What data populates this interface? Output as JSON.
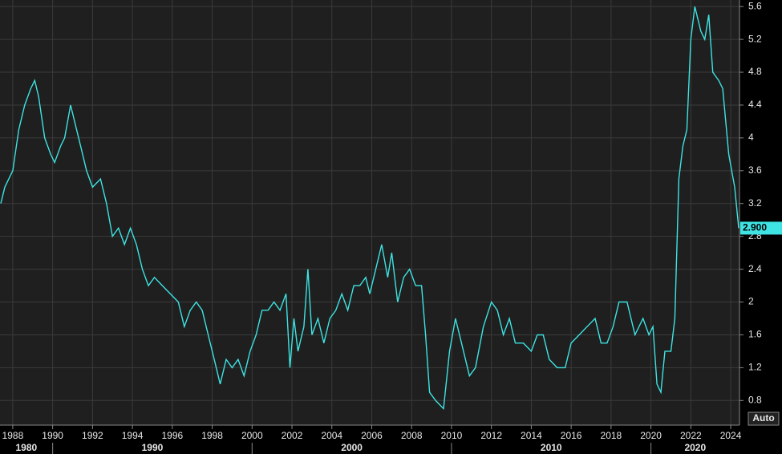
{
  "chart_data": {
    "type": "line",
    "x": [
      1987.4,
      1987.6,
      1988.0,
      1988.3,
      1988.6,
      1988.9,
      1989.1,
      1989.3,
      1989.6,
      1989.9,
      1990.1,
      1990.4,
      1990.6,
      1990.9,
      1991.1,
      1991.4,
      1991.7,
      1992.0,
      1992.4,
      1992.7,
      1993.0,
      1993.3,
      1993.6,
      1993.9,
      1994.2,
      1994.5,
      1994.8,
      1995.1,
      1995.5,
      1995.9,
      1996.3,
      1996.6,
      1996.9,
      1997.2,
      1997.5,
      1997.8,
      1998.1,
      1998.4,
      1998.7,
      1999.0,
      1999.3,
      1999.6,
      1999.9,
      2000.2,
      2000.5,
      2000.8,
      2001.1,
      2001.4,
      2001.7,
      2001.9,
      2002.1,
      2002.3,
      2002.6,
      2002.8,
      2003.0,
      2003.3,
      2003.6,
      2003.9,
      2004.2,
      2004.5,
      2004.8,
      2005.1,
      2005.4,
      2005.7,
      2005.9,
      2006.2,
      2006.5,
      2006.8,
      2007.0,
      2007.3,
      2007.6,
      2007.9,
      2008.2,
      2008.5,
      2008.7,
      2008.9,
      2009.2,
      2009.6,
      2009.9,
      2010.2,
      2010.5,
      2010.9,
      2011.2,
      2011.6,
      2012.0,
      2012.3,
      2012.6,
      2012.9,
      2013.2,
      2013.6,
      2014.0,
      2014.3,
      2014.6,
      2014.9,
      2015.3,
      2015.7,
      2016.0,
      2016.4,
      2016.8,
      2017.2,
      2017.5,
      2017.8,
      2018.1,
      2018.4,
      2018.8,
      2019.2,
      2019.6,
      2019.9,
      2020.1,
      2020.3,
      2020.5,
      2020.7,
      2021.0,
      2021.2,
      2021.4,
      2021.6,
      2021.8,
      2022.0,
      2022.2,
      2022.5,
      2022.7,
      2022.9,
      2023.1,
      2023.4,
      2023.6,
      2023.9,
      2024.2,
      2024.4
    ],
    "series": [
      {
        "color": "#3fe3e3",
        "values": [
          3.2,
          3.4,
          3.6,
          4.1,
          4.4,
          4.6,
          4.7,
          4.5,
          4.0,
          3.8,
          3.7,
          3.9,
          4.0,
          4.4,
          4.2,
          3.9,
          3.6,
          3.4,
          3.5,
          3.2,
          2.8,
          2.9,
          2.7,
          2.9,
          2.7,
          2.4,
          2.2,
          2.3,
          2.2,
          2.1,
          2.0,
          1.7,
          1.9,
          2.0,
          1.9,
          1.6,
          1.3,
          1.0,
          1.3,
          1.2,
          1.3,
          1.1,
          1.4,
          1.6,
          1.9,
          1.9,
          2.0,
          1.9,
          2.1,
          1.2,
          1.8,
          1.4,
          1.7,
          2.4,
          1.6,
          1.8,
          1.5,
          1.8,
          1.9,
          2.1,
          1.9,
          2.2,
          2.2,
          2.3,
          2.1,
          2.4,
          2.7,
          2.3,
          2.6,
          2.0,
          2.3,
          2.4,
          2.2,
          2.2,
          1.6,
          0.9,
          0.8,
          0.7,
          1.4,
          1.8,
          1.5,
          1.1,
          1.2,
          1.7,
          2.0,
          1.9,
          1.6,
          1.8,
          1.5,
          1.5,
          1.4,
          1.6,
          1.6,
          1.3,
          1.2,
          1.2,
          1.5,
          1.6,
          1.7,
          1.8,
          1.5,
          1.5,
          1.7,
          2.0,
          2.0,
          1.6,
          1.8,
          1.6,
          1.7,
          1.0,
          0.9,
          1.4,
          1.4,
          1.8,
          3.5,
          3.9,
          4.1,
          5.2,
          5.6,
          5.3,
          5.2,
          5.5,
          4.8,
          4.7,
          4.6,
          3.8,
          3.4,
          2.9
        ]
      }
    ],
    "last_value": {
      "value": 2.9,
      "label": "2.900"
    },
    "xlim": [
      1987.36,
      2024.44
    ],
    "xticks": [
      1988,
      1990,
      1992,
      1994,
      1996,
      1998,
      2000,
      2002,
      2004,
      2006,
      2008,
      2010,
      2012,
      2014,
      2016,
      2018,
      2020,
      2022,
      2024
    ],
    "decade_ticks": [
      1980,
      1990,
      2000,
      2010,
      2020
    ],
    "ylim": [
      0.5,
      5.68
    ],
    "yticks": [
      0.8,
      1.2,
      1.6,
      2,
      2.4,
      2.8,
      3.2,
      3.6,
      4,
      4.4,
      4.8,
      5.2,
      5.6
    ],
    "grid": true,
    "scale_button": "Auto"
  }
}
